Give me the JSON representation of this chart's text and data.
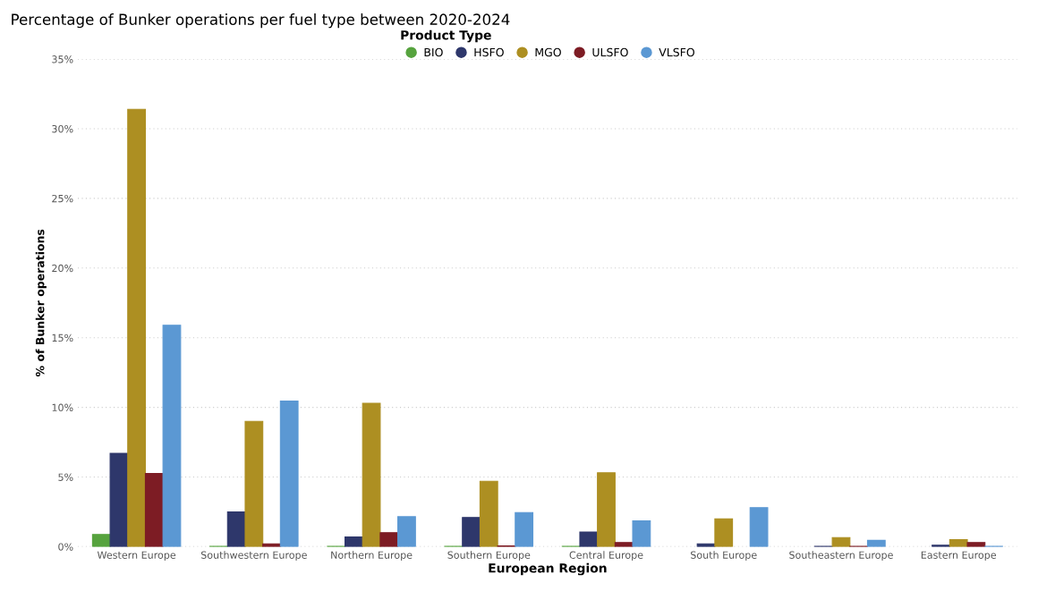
{
  "chart_data": {
    "type": "bar",
    "title": "Percentage of Bunker operations per fuel type between 2020-2024",
    "xlabel": "European Region",
    "ylabel": "% of Bunker operations",
    "legend_title": "Product Type",
    "categories": [
      "Western Europe",
      "Southwestern Europe",
      "Northern Europe",
      "Southern Europe",
      "Central Europe",
      "South Europe",
      "Southeastern Europe",
      "Eastern Europe"
    ],
    "series": [
      {
        "name": "BIO",
        "color": "#56a33e",
        "values": [
          0.87,
          0.02,
          0.02,
          0.02,
          0.02,
          null,
          null,
          null
        ]
      },
      {
        "name": "HSFO",
        "color": "#2e376b",
        "values": [
          6.7,
          2.5,
          0.7,
          2.1,
          1.05,
          0.2,
          0.03,
          0.1
        ]
      },
      {
        "name": "MGO",
        "color": "#ad8f22",
        "values": [
          31.4,
          9.0,
          10.3,
          4.7,
          5.3,
          2.0,
          0.65,
          0.5
        ]
      },
      {
        "name": "ULSFO",
        "color": "#7d1c24",
        "values": [
          5.25,
          0.2,
          1.0,
          0.05,
          0.3,
          null,
          0.03,
          0.3
        ]
      },
      {
        "name": "VLSFO",
        "color": "#5b98d3",
        "values": [
          15.9,
          10.45,
          2.15,
          2.45,
          1.85,
          2.8,
          0.45,
          0.03
        ]
      }
    ],
    "ylim": [
      0,
      35
    ],
    "yticks": [
      {
        "value": 0,
        "label": "0%"
      },
      {
        "value": 5,
        "label": "5%"
      },
      {
        "value": 10,
        "label": "10%"
      },
      {
        "value": 15,
        "label": "15%"
      },
      {
        "value": 20,
        "label": "20%"
      },
      {
        "value": 25,
        "label": "25%"
      },
      {
        "value": 30,
        "label": "30%"
      },
      {
        "value": 35,
        "label": "35%"
      }
    ],
    "grid": "y",
    "legend": "top"
  }
}
